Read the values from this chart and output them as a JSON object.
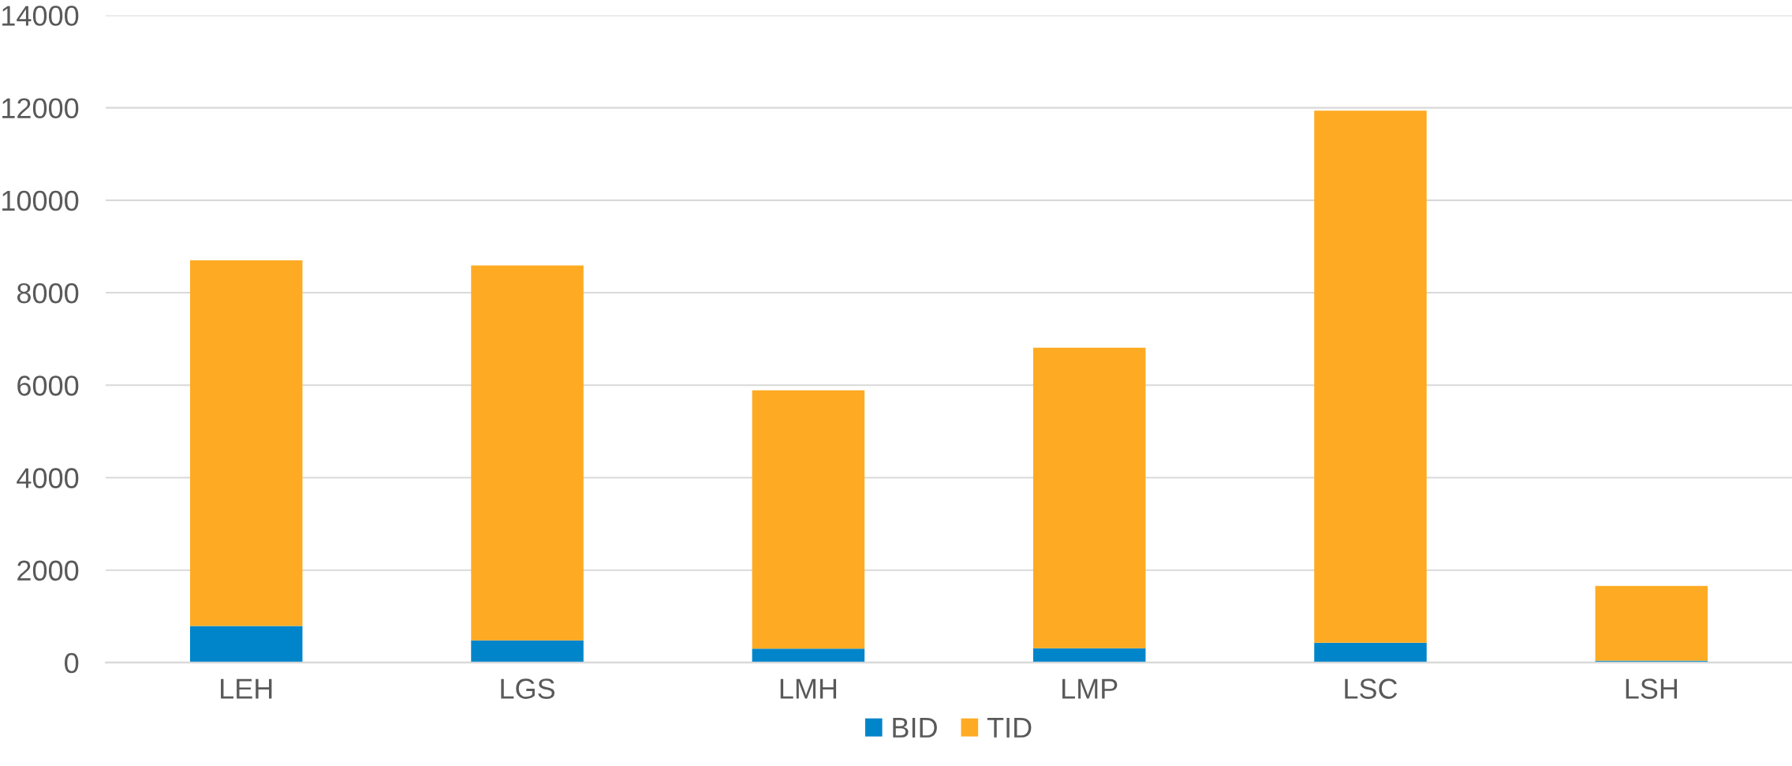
{
  "chart_data": {
    "type": "bar",
    "stacked": true,
    "categories": [
      "LEH",
      "LGS",
      "LMH",
      "LMP",
      "LSC",
      "LSH"
    ],
    "series": [
      {
        "name": "BID",
        "color": "#0085ca",
        "values": [
          790,
          480,
          300,
          310,
          430,
          40
        ]
      },
      {
        "name": "TID",
        "color": "#feab23",
        "values": [
          7910,
          8110,
          5590,
          6500,
          11510,
          1620
        ]
      }
    ],
    "ylim": [
      0,
      14000
    ],
    "yticks": [
      0,
      2000,
      4000,
      6000,
      8000,
      10000,
      12000,
      14000
    ],
    "grid": "y",
    "legend": "bottom"
  }
}
